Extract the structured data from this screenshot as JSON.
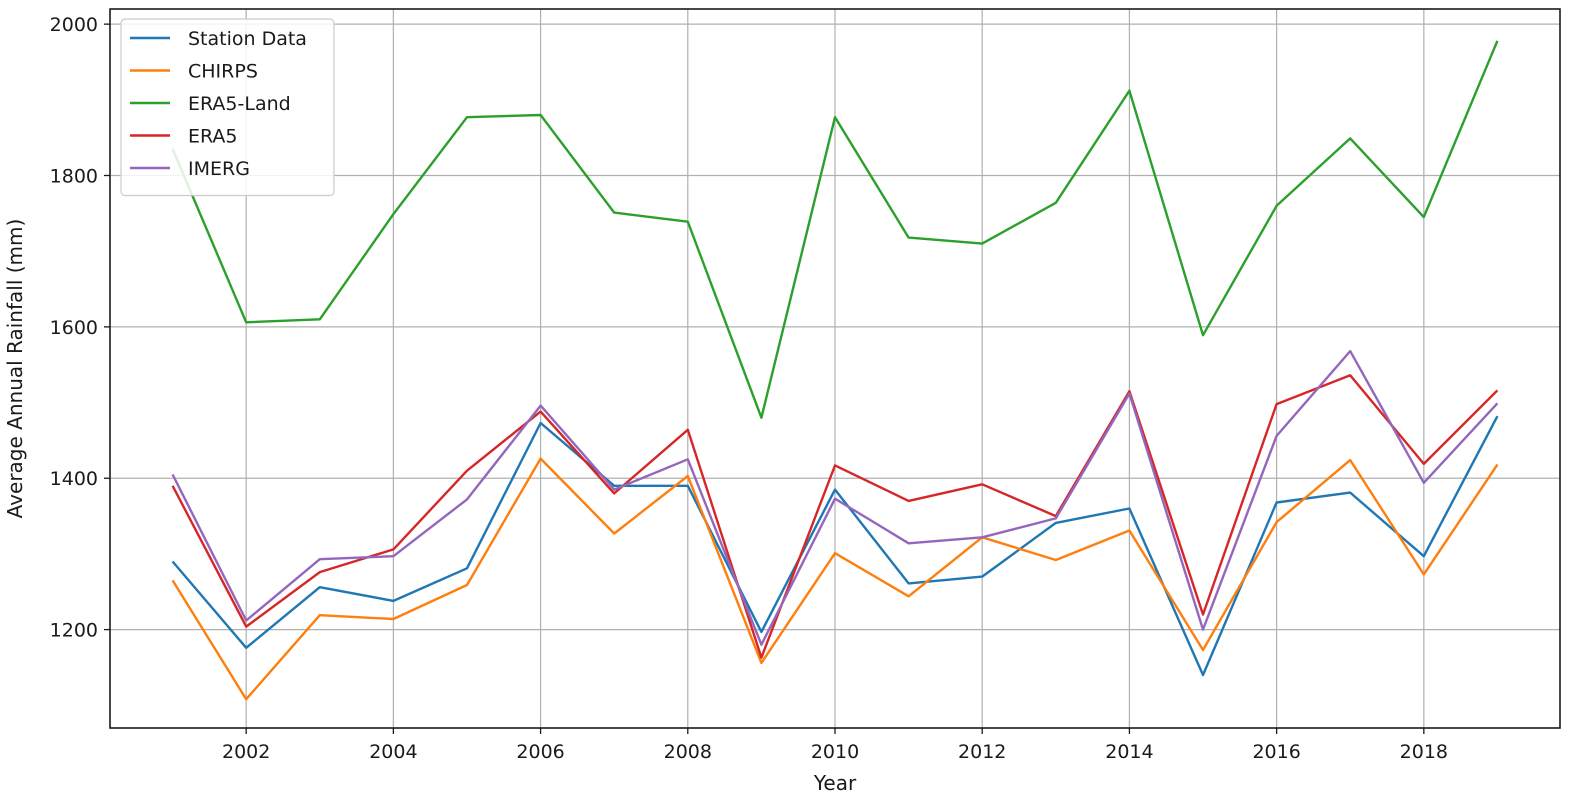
{
  "chart_data": {
    "type": "line",
    "xlabel": "Year",
    "ylabel": "Average Annual Rainfall (mm)",
    "xlim": [
      2000.15,
      2019.85
    ],
    "ylim": [
      1070,
      2020
    ],
    "x_ticks": [
      "2002",
      "2004",
      "2006",
      "2008",
      "2010",
      "2012",
      "2014",
      "2016",
      "2018"
    ],
    "y_ticks": [
      "1200",
      "1400",
      "1600",
      "1800",
      "2000"
    ],
    "grid": true,
    "legend_position": "top-left",
    "x": [
      2001,
      2002,
      2003,
      2004,
      2005,
      2006,
      2007,
      2008,
      2009,
      2010,
      2011,
      2012,
      2013,
      2014,
      2015,
      2016,
      2017,
      2018,
      2019
    ],
    "series": [
      {
        "name": "Station Data",
        "color": "#1f77b4",
        "values": [
          1290,
          1176,
          1256,
          1238,
          1281,
          1473,
          1390,
          1390,
          1197,
          1385,
          1261,
          1270,
          1341,
          1360,
          1140,
          1368,
          1381,
          1297,
          1482
        ]
      },
      {
        "name": "CHIRPS",
        "color": "#ff7f0e",
        "values": [
          1265,
          1108,
          1219,
          1214,
          1259,
          1426,
          1327,
          1403,
          1156,
          1301,
          1244,
          1322,
          1292,
          1331,
          1173,
          1342,
          1424,
          1273,
          1418
        ]
      },
      {
        "name": "ERA5-Land",
        "color": "#2ca02c",
        "values": [
          1835,
          1606,
          1610,
          1749,
          1877,
          1880,
          1751,
          1739,
          1480,
          1877,
          1718,
          1710,
          1764,
          1912,
          1589,
          1760,
          1849,
          1745,
          1978
        ]
      },
      {
        "name": "ERA5",
        "color": "#d62728",
        "values": [
          1390,
          1204,
          1276,
          1306,
          1410,
          1488,
          1380,
          1464,
          1163,
          1417,
          1370,
          1392,
          1350,
          1515,
          1220,
          1498,
          1536,
          1419,
          1516
        ]
      },
      {
        "name": "IMERG",
        "color": "#9467bd",
        "values": [
          1405,
          1212,
          1293,
          1297,
          1372,
          1496,
          1385,
          1425,
          1180,
          1373,
          1314,
          1322,
          1347,
          1512,
          1200,
          1456,
          1568,
          1394,
          1499
        ]
      }
    ]
  }
}
